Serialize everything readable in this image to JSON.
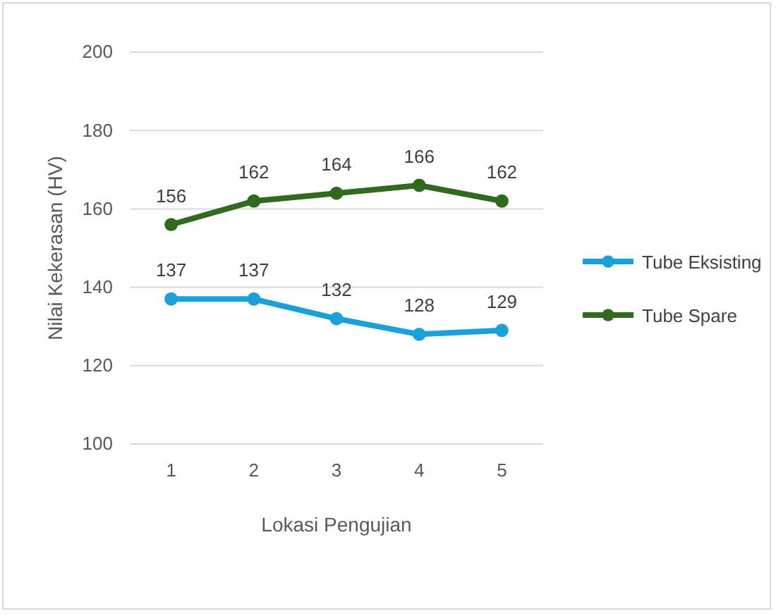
{
  "chart_data": {
    "type": "line",
    "xlabel": "Lokasi Pengujian",
    "ylabel": "Nilai Kekerasan (HV)",
    "categories": [
      "1",
      "2",
      "3",
      "4",
      "5"
    ],
    "series": [
      {
        "name": "Tube Eksisting",
        "color": "#1ba1d9",
        "values": [
          137,
          137,
          132,
          128,
          129
        ]
      },
      {
        "name": "Tube Spare",
        "color": "#2f6a1e",
        "values": [
          156,
          162,
          164,
          166,
          162
        ]
      }
    ],
    "ylim": [
      100,
      200
    ],
    "yticks": [
      100,
      120,
      140,
      160,
      180,
      200
    ],
    "grid": "y",
    "legend": "right",
    "marker": "circle",
    "data_labels": true
  }
}
